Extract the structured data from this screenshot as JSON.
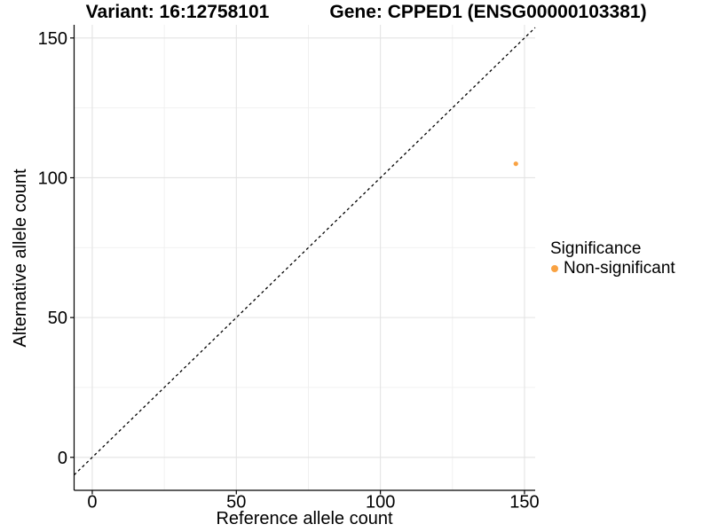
{
  "header": {
    "title_left": "Variant: 16:12758101",
    "title_right": "Gene: CPPED1 (ENSG00000103381)"
  },
  "chart_data": {
    "type": "scatter",
    "xlabel": "Reference allele count",
    "ylabel": "Alternative allele count",
    "xlim": [
      -6.3,
      153.7
    ],
    "ylim": [
      -11.8,
      154.7
    ],
    "x_ticks": [
      0,
      50,
      100,
      150
    ],
    "y_ticks": [
      0,
      50,
      100,
      150
    ],
    "x_minor_ticks": [
      25,
      75,
      125
    ],
    "y_minor_ticks": [
      25,
      75,
      125
    ],
    "grid": "major+minor",
    "reference_line": {
      "type": "identity",
      "style": "dashed",
      "color": "#000000"
    },
    "series": [
      {
        "name": "Non-significant",
        "color": "#F9A242",
        "points": [
          {
            "x": 147,
            "y": 105
          }
        ]
      }
    ],
    "legend": {
      "title": "Significance",
      "position": "right",
      "entries": [
        {
          "label": "Non-significant",
          "color": "#F9A242"
        }
      ]
    }
  }
}
